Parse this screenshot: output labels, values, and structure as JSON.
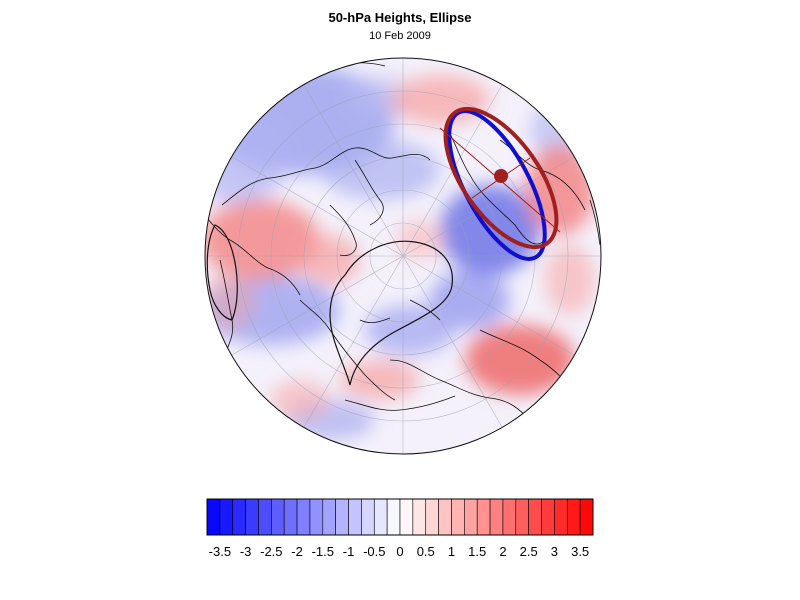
{
  "figure": {
    "title": "50-hPa Heights, Ellipse",
    "subtitle": "10 Feb 2009"
  },
  "colors": {
    "ellipse_blue": "#1010cc",
    "ellipse_red": "#a02020",
    "centroid": "#a02020",
    "negative_max": "#0000ff",
    "positive_max": "#ff0000"
  },
  "colorbar": {
    "levels": [
      -3.75,
      -3.5,
      -3.25,
      -3,
      -2.75,
      -2.5,
      -2.25,
      -2,
      -1.75,
      -1.5,
      -1.25,
      -1,
      -0.75,
      -0.5,
      -0.25,
      0,
      0.25,
      0.5,
      0.75,
      1,
      1.25,
      1.5,
      1.75,
      2,
      2.25,
      2.5,
      2.75,
      3,
      3.25,
      3.5,
      3.75
    ],
    "tick_labels": [
      "-3.5",
      "-3",
      "-2.5",
      "-2",
      "-1.5",
      "-1",
      "-0.5",
      "0",
      "0.5",
      "1",
      "1.5",
      "2",
      "2.5",
      "3",
      "3.5"
    ]
  }
}
